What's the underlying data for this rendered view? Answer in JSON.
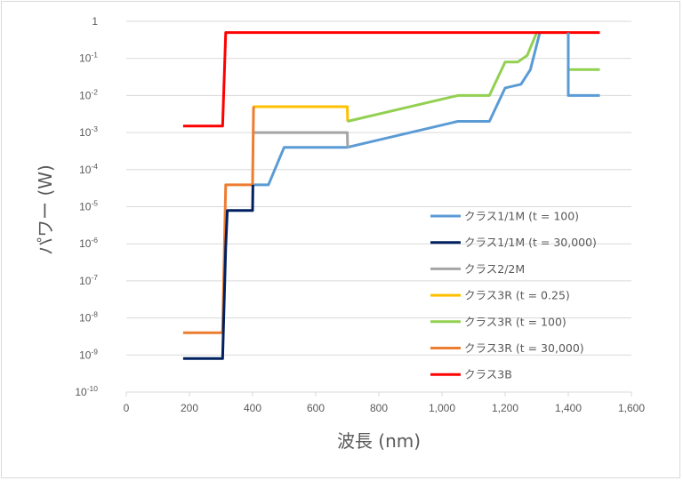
{
  "chart_data": {
    "type": "line",
    "xlabel": "波長 (nm)",
    "ylabel": "パワー (W)",
    "xlim": [
      0,
      1600
    ],
    "ylim_log10": [
      -10,
      0
    ],
    "y_scale": "log",
    "grid": "horizontal major gridlines",
    "legend_position": "bottom-right",
    "x_ticks": [
      "0",
      "200",
      "400",
      "600",
      "800",
      "1,000",
      "1,200",
      "1,400",
      "1,600"
    ],
    "y_ticks": [
      {
        "base": "1",
        "exp": ""
      },
      {
        "base": "10",
        "exp": "-1"
      },
      {
        "base": "10",
        "exp": "-2"
      },
      {
        "base": "10",
        "exp": "-3"
      },
      {
        "base": "10",
        "exp": "-4"
      },
      {
        "base": "10",
        "exp": "-5"
      },
      {
        "base": "10",
        "exp": "-6"
      },
      {
        "base": "10",
        "exp": "-7"
      },
      {
        "base": "10",
        "exp": "-8"
      },
      {
        "base": "10",
        "exp": "-9"
      },
      {
        "base": "10",
        "exp": "-10"
      }
    ],
    "series": [
      {
        "name": "クラス1/1M (t = 100)",
        "color": "#5b9bd5",
        "points": [
          [
            400,
            3.9e-05
          ],
          [
            450,
            3.9e-05
          ],
          [
            500,
            0.0004
          ],
          [
            700,
            0.0004
          ],
          [
            1050,
            0.002
          ],
          [
            1150,
            0.002
          ],
          [
            1200,
            0.016
          ],
          [
            1250,
            0.02
          ],
          [
            1280,
            0.05
          ],
          [
            1310,
            0.5
          ]
        ]
      },
      {
        "name": "クラス1/1M (t = 30,000)",
        "color": "#002060",
        "points": [
          [
            180,
            8e-10
          ],
          [
            305,
            8e-10
          ],
          [
            315,
            8e-07
          ],
          [
            320,
            7.9e-06
          ],
          [
            400,
            7.9e-06
          ],
          [
            401,
            3.9e-05
          ]
        ]
      },
      {
        "name": "クラス2/2M",
        "color": "#a5a5a5",
        "points": [
          [
            400,
            0.001
          ],
          [
            700,
            0.001
          ],
          [
            701,
            0.0004
          ]
        ]
      },
      {
        "name": "クラス3R (t = 0.25)",
        "color": "#ffc000",
        "points": [
          [
            400,
            0.005
          ],
          [
            700,
            0.005
          ],
          [
            701,
            0.002
          ]
        ]
      },
      {
        "name": "クラス3R (t = 100)",
        "color": "#92d050",
        "points": [
          [
            700,
            0.002
          ],
          [
            1050,
            0.01
          ],
          [
            1150,
            0.01
          ],
          [
            1200,
            0.08
          ],
          [
            1240,
            0.08
          ],
          [
            1270,
            0.12
          ],
          [
            1300,
            0.5
          ],
          [
            1400,
            0.5
          ],
          [
            1400,
            0.05
          ],
          [
            1500,
            0.05
          ]
        ]
      },
      {
        "name": "クラス3R (t = 30,000)",
        "color": "#ed7d31",
        "points": [
          [
            180,
            4e-09
          ],
          [
            305,
            4e-09
          ],
          [
            315,
            3.9e-05
          ],
          [
            400,
            3.9e-05
          ],
          [
            403,
            0.005
          ]
        ]
      },
      {
        "name": "クラス3B",
        "color": "#ff0000",
        "points": [
          [
            180,
            0.0015
          ],
          [
            305,
            0.0015
          ],
          [
            315,
            0.5
          ],
          [
            1500,
            0.5
          ]
        ]
      }
    ],
    "extra_segments": [
      {
        "series": "クラス1/1M (t = 100)",
        "color": "#5b9bd5",
        "points": [
          [
            1400,
            0.5
          ],
          [
            1400,
            0.01
          ],
          [
            1500,
            0.01
          ]
        ]
      }
    ]
  }
}
